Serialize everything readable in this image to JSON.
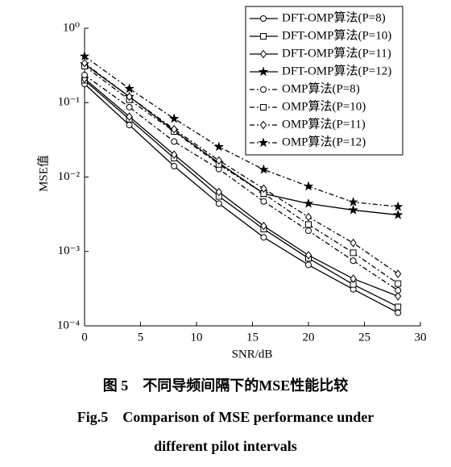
{
  "chart_data": {
    "type": "line",
    "log_y": true,
    "x_label": "SNR/dB",
    "y_label": "MSE值",
    "xlim": [
      0,
      30
    ],
    "xticks": [
      0,
      5,
      10,
      15,
      20,
      25,
      30
    ],
    "ylim": [
      0.0001,
      1
    ],
    "yticks": [
      {
        "value": 0.0001,
        "label": "10⁻⁴"
      },
      {
        "value": 0.001,
        "label": "10⁻³"
      },
      {
        "value": 0.01,
        "label": "10⁻²"
      },
      {
        "value": 0.1,
        "label": "10⁻¹"
      },
      {
        "value": 1,
        "label": "10⁰"
      }
    ],
    "x": [
      0,
      4,
      8,
      12,
      16,
      20,
      24,
      28
    ],
    "series": [
      {
        "name": "DFT-OMP算法(P=8)",
        "color": "#000000",
        "marker": "circle",
        "dash": "solid",
        "values": [
          0.178,
          0.05,
          0.014,
          0.0044,
          0.00155,
          0.00066,
          0.00031,
          0.00015
        ]
      },
      {
        "name": "DFT-OMP算法(P=10)",
        "color": "#000000",
        "marker": "square",
        "dash": "solid",
        "values": [
          0.2,
          0.06,
          0.018,
          0.0055,
          0.002,
          0.00081,
          0.00036,
          0.00018
        ]
      },
      {
        "name": "DFT-OMP算法(P=11)",
        "color": "#000000",
        "marker": "diamond",
        "dash": "solid",
        "values": [
          0.21,
          0.065,
          0.02,
          0.0063,
          0.0022,
          0.00089,
          0.00043,
          0.00025
        ]
      },
      {
        "name": "DFT-OMP算法(P=12)",
        "color": "#000000",
        "marker": "star",
        "dash": "solid",
        "values": [
          0.33,
          0.12,
          0.042,
          0.0155,
          0.006,
          0.0044,
          0.0036,
          0.0031
        ]
      },
      {
        "name": "OMP算法(P=8)",
        "color": "#000000",
        "marker": "circle",
        "dash": "dashdot",
        "values": [
          0.235,
          0.087,
          0.03,
          0.0128,
          0.0047,
          0.0019,
          0.00075,
          0.0003
        ]
      },
      {
        "name": "OMP算法(P=10)",
        "color": "#000000",
        "marker": "square",
        "dash": "dashdot",
        "values": [
          0.31,
          0.109,
          0.041,
          0.0148,
          0.006,
          0.0023,
          0.00096,
          0.00037
        ]
      },
      {
        "name": "OMP算法(P=11)",
        "color": "#000000",
        "marker": "diamond",
        "dash": "dashdot",
        "values": [
          0.34,
          0.12,
          0.044,
          0.0167,
          0.007,
          0.0029,
          0.0013,
          0.0005
        ]
      },
      {
        "name": "OMP算法(P=12)",
        "color": "#000000",
        "marker": "star",
        "dash": "dashdot",
        "values": [
          0.42,
          0.154,
          0.061,
          0.0255,
          0.0126,
          0.0075,
          0.0046,
          0.004
        ]
      }
    ],
    "legend": "top-right"
  },
  "caption": {
    "cn": "图 5　不同导频间隔下的MSE性能比较",
    "en": [
      "Fig.5　Comparison of MSE performance under",
      "different pilot intervals"
    ]
  }
}
